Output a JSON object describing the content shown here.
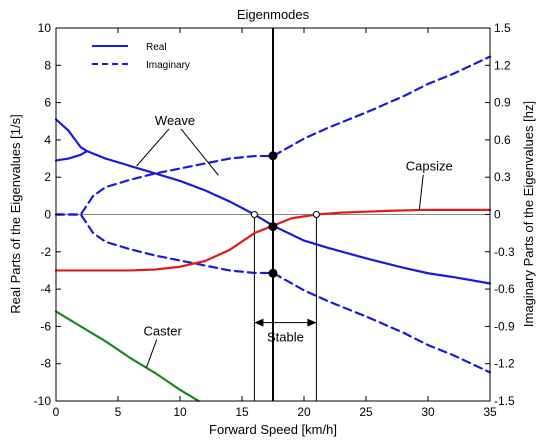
{
  "chart_data": {
    "type": "line",
    "title": "Eigenmodes",
    "xlabel": "Forward Speed [km/h]",
    "ylabel": "Real Parts of the Eigenvalues [1/s]",
    "y2label": "Imaginary Parts of the Eigenvalues [hz]",
    "xlim": [
      0,
      35
    ],
    "ylim": [
      -10,
      10
    ],
    "y2lim": [
      -1.5,
      1.5
    ],
    "x_ticks": [
      "0",
      "5",
      "10",
      "15",
      "20",
      "25",
      "30",
      "35"
    ],
    "y_ticks": [
      "-10",
      "-8",
      "-6",
      "-4",
      "-2",
      "0",
      "2",
      "4",
      "6",
      "8",
      "10"
    ],
    "y2_ticks": [
      "-1.5",
      "-1.2",
      "-0.9",
      "-0.6",
      "-0.3",
      "0",
      "0.3",
      "0.6",
      "0.9",
      "1.2",
      "1.5"
    ],
    "grid": false,
    "legend": {
      "position": "top-left",
      "entries": [
        {
          "label": "Real",
          "style": "solid",
          "color": "#1a1adb"
        },
        {
          "label": "Imaginary",
          "style": "dashed",
          "color": "#1a1adb"
        }
      ]
    },
    "colors": {
      "weave": "#1a1adb",
      "capsize": "#e31a1a",
      "caster": "#1a8a1a",
      "axes": "#000000",
      "zero_line": "#888888"
    },
    "series": [
      {
        "mode": "weave",
        "part": "real",
        "x": [
          0,
          1,
          2,
          2.5,
          4,
          6,
          8,
          10,
          12,
          14,
          16,
          17.5,
          20,
          22,
          25,
          28,
          30,
          32,
          35
        ],
        "y": [
          5.1,
          4.5,
          3.6,
          3.4,
          3.0,
          2.6,
          2.2,
          1.8,
          1.3,
          0.7,
          0.0,
          -0.6,
          -1.4,
          -1.8,
          -2.35,
          -2.85,
          -3.15,
          -3.35,
          -3.7
        ]
      },
      {
        "mode": "weave-b",
        "part": "real",
        "x": [
          0,
          1,
          2,
          2.5
        ],
        "y": [
          2.9,
          3.0,
          3.2,
          3.4
        ]
      },
      {
        "mode": "weave",
        "part": "imag_positive",
        "x": [
          0,
          2,
          3,
          4,
          6,
          8,
          10,
          12,
          14,
          16,
          17.5,
          20,
          22,
          25,
          28,
          30,
          32,
          35
        ],
        "y": [
          0.0,
          0.0,
          0.15,
          0.22,
          0.28,
          0.33,
          0.37,
          0.41,
          0.45,
          0.47,
          0.47,
          0.61,
          0.7,
          0.82,
          0.95,
          1.05,
          1.13,
          1.27
        ]
      },
      {
        "mode": "weave",
        "part": "imag_negative",
        "x": [
          0,
          2,
          3,
          4,
          6,
          8,
          10,
          12,
          14,
          16,
          17.5,
          20,
          22,
          25,
          28,
          30,
          32,
          35
        ],
        "y": [
          0.0,
          0.0,
          -0.15,
          -0.22,
          -0.28,
          -0.33,
          -0.37,
          -0.41,
          -0.45,
          -0.47,
          -0.47,
          -0.61,
          -0.7,
          -0.82,
          -0.95,
          -1.05,
          -1.13,
          -1.27
        ]
      },
      {
        "mode": "capsize",
        "part": "real",
        "x": [
          0,
          2,
          4,
          6,
          8,
          10,
          12,
          14,
          16,
          17.5,
          19,
          21,
          23,
          25,
          27,
          30,
          35
        ],
        "y": [
          -3.0,
          -3.0,
          -3.0,
          -3.0,
          -2.95,
          -2.8,
          -2.5,
          -1.9,
          -1.0,
          -0.6,
          -0.2,
          0.0,
          0.1,
          0.15,
          0.2,
          0.25,
          0.25
        ]
      },
      {
        "mode": "caster",
        "part": "real",
        "x": [
          0,
          2,
          4,
          6,
          8,
          10,
          11.5
        ],
        "y": [
          -5.2,
          -6.0,
          -6.8,
          -7.7,
          -8.5,
          -9.4,
          -10.0
        ]
      }
    ],
    "vertical_lines": [
      {
        "x": 17.5,
        "y_from": -10,
        "y_to": 10,
        "weight": "heavy"
      },
      {
        "x": 16.0,
        "y_from": -10,
        "y_to": 0,
        "weight": "thin"
      },
      {
        "x": 21.0,
        "y_from": -10,
        "y_to": 0,
        "weight": "thin"
      }
    ],
    "markers": [
      {
        "x": 17.5,
        "y": 3.15,
        "style": "filled"
      },
      {
        "x": 17.5,
        "y": -0.65,
        "style": "filled"
      },
      {
        "x": 17.5,
        "y": -3.15,
        "style": "filled"
      },
      {
        "x": 16.0,
        "y": 0,
        "style": "open"
      },
      {
        "x": 21.0,
        "y": 0,
        "style": "open"
      }
    ],
    "annotations": [
      {
        "text": "Weave",
        "x": 9.6,
        "y": 4.8,
        "color": "#1a1adb",
        "arrows_to": [
          [
            6.5,
            2.6
          ],
          [
            13.1,
            2.1
          ]
        ]
      },
      {
        "text": "Capsize",
        "x": 30.1,
        "y": 2.35,
        "color": "#e31a1a",
        "arrows_to": [
          [
            29.3,
            0.25
          ]
        ]
      },
      {
        "text": "Caster",
        "x": 8.6,
        "y": -6.5,
        "color": "#1a8a1a",
        "arrows_to": [
          [
            7.3,
            -8.2
          ]
        ]
      },
      {
        "text": "Stable",
        "x": 18.5,
        "y": -6.8,
        "color": "#000000",
        "span": [
          16.0,
          21.0
        ],
        "span_y": -5.8
      }
    ]
  }
}
